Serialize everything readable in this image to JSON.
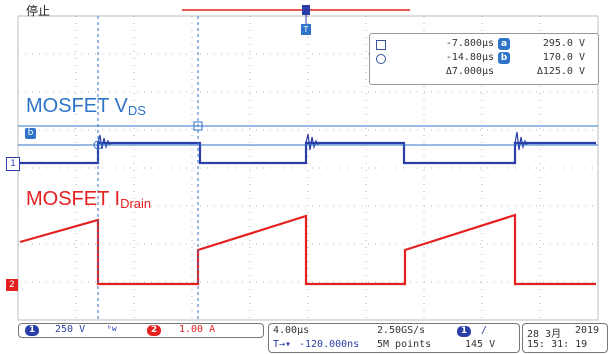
{
  "status": {
    "label": "停止"
  },
  "markers": {
    "ch1_badge": "1",
    "ch2_badge": "2",
    "cursor_b_badge": "b",
    "trigger_badge": "T"
  },
  "waveform_labels": {
    "mosfet_v_main": "MOSFET V",
    "mosfet_v_sub": "DS",
    "mosfet_i_main": "MOSFET I",
    "mosfet_i_sub": "Drain"
  },
  "cursors": {
    "row1": {
      "time": "-7.800µs",
      "badge": "a",
      "value": "295.0 V"
    },
    "row2": {
      "time": "-14.80µs",
      "badge": "b",
      "value": "170.0 V"
    },
    "row3": {
      "time": "Δ7.000µs",
      "value": "Δ125.0 V"
    }
  },
  "bottom": {
    "ch1": {
      "badge": "1",
      "scale": "250 V",
      "bw_icon": "ᵇw"
    },
    "ch2": {
      "badge": "2",
      "scale": "1.00 A"
    },
    "timebase": "4.00µs",
    "sample_rate": "2.50GS/s",
    "trigger_ch_badge": "1",
    "trigger_slope": "/",
    "position": "-120.000ns",
    "record_length": "5M points",
    "trigger_level": "145 V",
    "date": "28 3月",
    "year": "2019",
    "time": "15: 31: 19"
  },
  "colors": {
    "ch1": "#2b3ea8",
    "ch2": "#e52020",
    "grid": "#9aa0a8",
    "cursor": "#2e74c9",
    "label_blue": "#2e74c9",
    "label_red": "#e52020"
  }
}
